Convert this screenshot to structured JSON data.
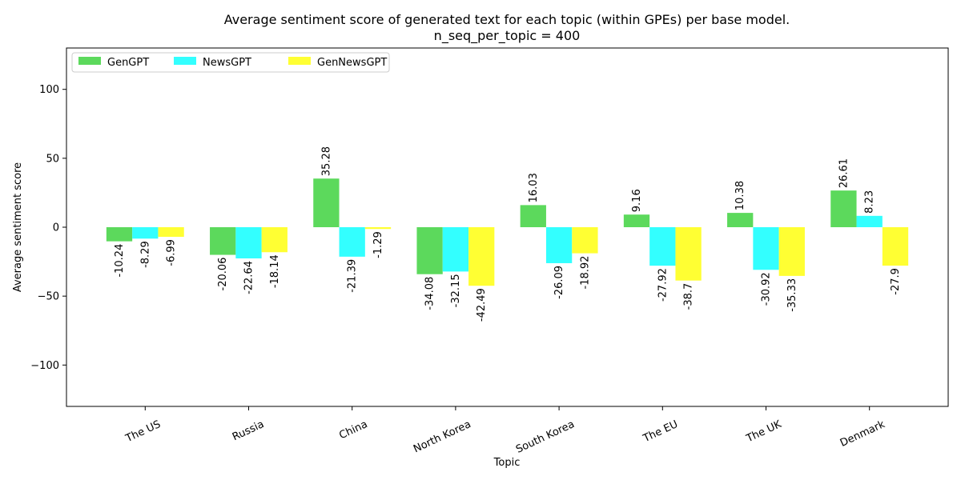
{
  "chart_data": {
    "type": "bar",
    "title": "Average sentiment score of generated text for each topic (within GPEs) per base model.",
    "subtitle": "n_seq_per_topic = 400",
    "xlabel": "Topic",
    "ylabel": "Average sentiment score",
    "ylim": [
      -130,
      130
    ],
    "yticks": [
      -100,
      -50,
      0,
      50,
      100
    ],
    "ytick_labels": [
      "−100",
      "−50",
      "0",
      "50",
      "100"
    ],
    "grid": false,
    "legend_position": "top-left",
    "categories": [
      "The US",
      "Russia",
      "China",
      "North Korea",
      "South Korea",
      "The EU",
      "The UK",
      "Denmark"
    ],
    "series": [
      {
        "name": "GenGPT",
        "color": "#5cd95c",
        "values": [
          -10.24,
          -20.06,
          35.28,
          -34.08,
          16.03,
          9.16,
          10.38,
          26.61
        ],
        "labels": [
          "-10.24",
          "-20.06",
          "35.28",
          "-34.08",
          "16.03",
          "9.16",
          "10.38",
          "26.61"
        ]
      },
      {
        "name": "NewsGPT",
        "color": "#33ffff",
        "values": [
          -8.29,
          -22.64,
          -21.39,
          -32.15,
          -26.09,
          -27.92,
          -30.92,
          8.23
        ],
        "labels": [
          "-8.29",
          "-22.64",
          "-21.39",
          "-32.15",
          "-26.09",
          "-27.92",
          "-30.92",
          "8.23"
        ]
      },
      {
        "name": "GenNewsGPT",
        "color": "#ffff33",
        "values": [
          -6.99,
          -18.14,
          -1.29,
          -42.49,
          -18.92,
          -38.7,
          -35.33,
          -27.9
        ],
        "labels": [
          "-6.99",
          "-18.14",
          "-1.29",
          "-42.49",
          "-18.92",
          "-38.7",
          "-35.33",
          "-27.9"
        ]
      }
    ]
  }
}
